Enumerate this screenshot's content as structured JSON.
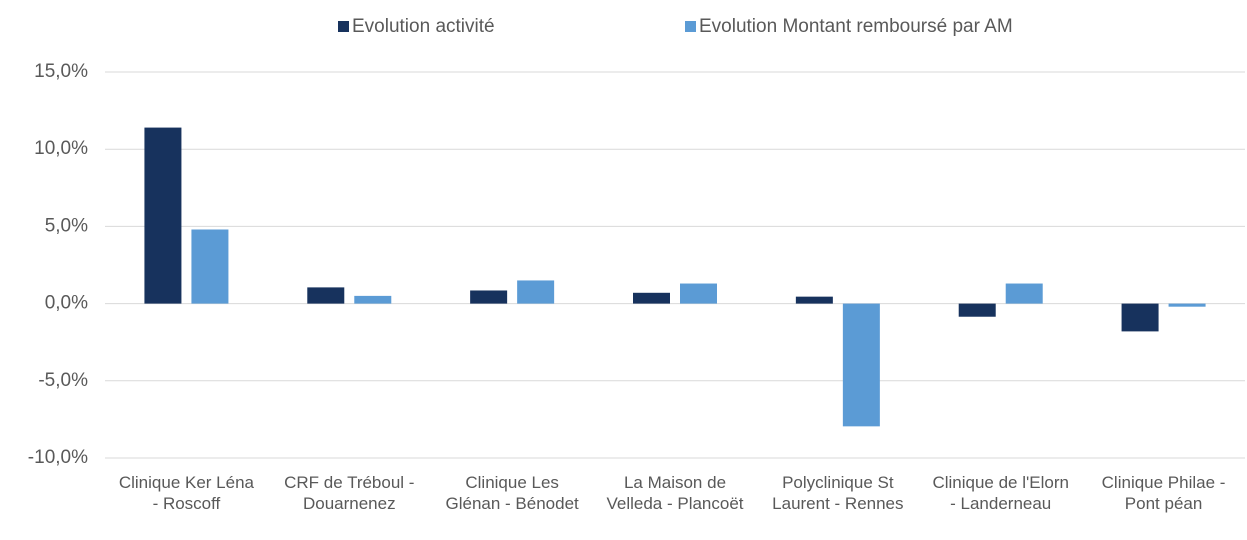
{
  "chart_data": {
    "type": "bar",
    "categories": [
      "Clinique Ker Léna - Roscoff",
      "CRF de Tréboul - Douarnenez",
      "Clinique Les Glénan - Bénodet",
      "La Maison de Velleda - Plancoët",
      "Polyclinique St Laurent - Rennes",
      "Clinique de l'Elorn - Landerneau",
      "Clinique Philae - Pont péan"
    ],
    "series": [
      {
        "name": "Evolution activité",
        "color": "#17325d",
        "values": [
          11.4,
          1.05,
          0.85,
          0.7,
          0.45,
          -0.85,
          -1.8
        ]
      },
      {
        "name": "Evolution Montant remboursé par AM",
        "color": "#5b9bd5",
        "values": [
          4.8,
          0.5,
          1.5,
          1.3,
          -7.95,
          1.3,
          -0.2
        ]
      }
    ],
    "ylim": [
      -10,
      15
    ],
    "yticks": [
      {
        "value": -10,
        "label": "-10,0%"
      },
      {
        "value": -5,
        "label": "-5,0%"
      },
      {
        "value": 0,
        "label": "0,0%"
      },
      {
        "value": 5,
        "label": "5,0%"
      },
      {
        "value": 10,
        "label": "10,0%"
      },
      {
        "value": 15,
        "label": "15,0%"
      }
    ],
    "grid": true,
    "legend": "top"
  }
}
